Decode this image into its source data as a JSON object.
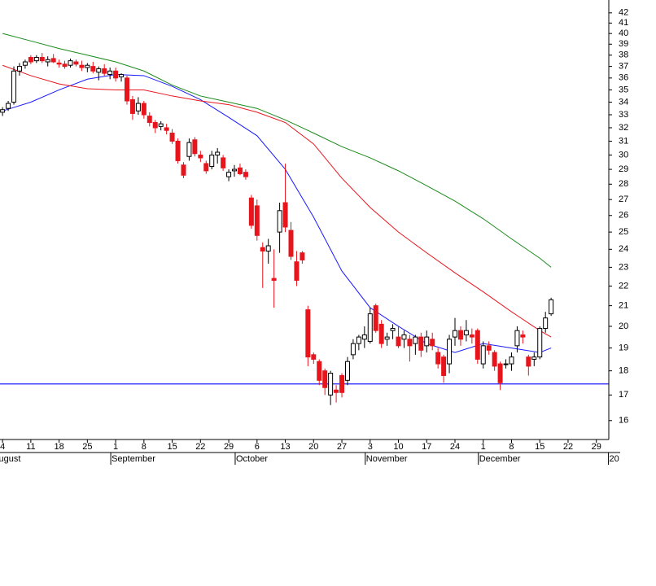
{
  "chart_data": {
    "type": "candlestick",
    "log_scale": true,
    "ylim": [
      15.3,
      43.3
    ],
    "yticks": [
      16,
      17,
      18,
      19,
      20,
      21,
      22,
      23,
      24,
      25,
      26,
      27,
      28,
      29,
      30,
      31,
      32,
      33,
      34,
      35,
      36,
      37,
      38,
      39,
      40,
      41,
      42
    ],
    "xlim": [
      -0.45,
      107.2
    ],
    "xticks": [
      {
        "value": 0,
        "label": "4"
      },
      {
        "value": 5,
        "label": "11"
      },
      {
        "value": 10,
        "label": "18"
      },
      {
        "value": 15,
        "label": "25"
      },
      {
        "value": 20,
        "label": "1"
      },
      {
        "value": 25,
        "label": "8"
      },
      {
        "value": 30,
        "label": "15"
      },
      {
        "value": 35,
        "label": "22"
      },
      {
        "value": 40,
        "label": "29"
      },
      {
        "value": 45,
        "label": "6"
      },
      {
        "value": 50,
        "label": "13"
      },
      {
        "value": 55,
        "label": "20"
      },
      {
        "value": 60,
        "label": "27"
      },
      {
        "value": 65,
        "label": "3"
      },
      {
        "value": 70,
        "label": "10"
      },
      {
        "value": 75,
        "label": "17"
      },
      {
        "value": 80,
        "label": "24"
      },
      {
        "value": 85,
        "label": "1"
      },
      {
        "value": 90,
        "label": "8"
      },
      {
        "value": 95,
        "label": "15"
      },
      {
        "value": 100,
        "label": "22"
      },
      {
        "value": 105,
        "label": "29"
      }
    ],
    "month_labels": [
      {
        "value": -1,
        "label": "August"
      },
      {
        "value": 20,
        "label": "September"
      },
      {
        "value": 42,
        "label": "October"
      },
      {
        "value": 65,
        "label": "November"
      },
      {
        "value": 85,
        "label": "December"
      },
      {
        "value": 108,
        "label": "20"
      }
    ],
    "up_color": "#ffffff",
    "down_color": "#e8141c",
    "ohlc": [
      [
        33.2,
        33.6,
        32.9,
        33.4
      ],
      [
        33.5,
        34.1,
        33.3,
        33.9
      ],
      [
        34.0,
        37.0,
        33.8,
        36.6
      ],
      [
        36.6,
        37.3,
        36.2,
        37.0
      ],
      [
        37.1,
        37.6,
        36.8,
        37.4
      ],
      [
        37.8,
        38.0,
        37.2,
        37.4
      ],
      [
        37.5,
        38.0,
        37.3,
        37.8
      ],
      [
        37.8,
        38.2,
        37.3,
        37.5
      ],
      [
        37.4,
        37.9,
        37.0,
        37.6
      ],
      [
        37.7,
        38.1,
        37.3,
        37.4
      ],
      [
        37.3,
        37.6,
        36.9,
        37.2
      ],
      [
        37.2,
        37.5,
        36.8,
        37.0
      ],
      [
        37.1,
        37.7,
        36.9,
        37.5
      ],
      [
        37.4,
        37.6,
        37.0,
        37.2
      ],
      [
        37.1,
        37.5,
        36.6,
        36.9
      ],
      [
        36.9,
        37.3,
        36.5,
        37.1
      ],
      [
        37.0,
        37.4,
        36.4,
        36.6
      ],
      [
        36.5,
        37.0,
        35.8,
        36.8
      ],
      [
        36.8,
        37.2,
        36.2,
        36.4
      ],
      [
        36.3,
        36.9,
        35.9,
        36.6
      ],
      [
        36.6,
        36.9,
        35.7,
        36.0
      ],
      [
        36.1,
        36.4,
        35.7,
        36.3
      ],
      [
        36.0,
        36.2,
        33.8,
        34.1
      ],
      [
        34.2,
        34.5,
        32.6,
        33.1
      ],
      [
        33.3,
        34.4,
        33.0,
        33.9
      ],
      [
        33.9,
        34.1,
        32.7,
        33.0
      ],
      [
        32.9,
        33.2,
        32.1,
        32.4
      ],
      [
        32.4,
        32.6,
        31.6,
        32.0
      ],
      [
        32.1,
        32.5,
        31.8,
        32.3
      ],
      [
        32.0,
        32.3,
        31.5,
        31.8
      ],
      [
        31.6,
        31.9,
        30.8,
        31.0
      ],
      [
        31.0,
        31.2,
        29.4,
        29.6
      ],
      [
        29.3,
        29.5,
        28.4,
        28.6
      ],
      [
        29.9,
        31.2,
        29.6,
        30.9
      ],
      [
        31.1,
        31.3,
        29.9,
        30.1
      ],
      [
        30.0,
        30.3,
        29.5,
        29.8
      ],
      [
        29.4,
        29.6,
        28.7,
        28.9
      ],
      [
        29.2,
        30.3,
        29.0,
        30.0
      ],
      [
        30.0,
        30.5,
        29.4,
        30.2
      ],
      [
        29.8,
        30.0,
        28.9,
        29.1
      ],
      [
        28.5,
        29.0,
        28.2,
        28.8
      ],
      [
        28.9,
        29.3,
        28.5,
        29.0
      ],
      [
        29.1,
        29.4,
        28.6,
        28.7
      ],
      [
        28.8,
        29.0,
        28.3,
        28.5
      ],
      [
        27.1,
        27.3,
        25.2,
        25.4
      ],
      [
        26.6,
        27.0,
        24.5,
        24.8
      ],
      [
        24.1,
        24.4,
        21.9,
        23.9
      ],
      [
        23.9,
        24.6,
        23.2,
        24.2
      ],
      [
        22.4,
        24.0,
        20.9,
        22.3
      ],
      [
        25.0,
        26.8,
        23.8,
        26.3
      ],
      [
        26.8,
        29.4,
        25.0,
        25.3
      ],
      [
        25.1,
        25.6,
        23.4,
        23.6
      ],
      [
        23.3,
        23.9,
        22.0,
        22.3
      ],
      [
        23.8,
        23.9,
        23.2,
        23.4
      ],
      [
        20.8,
        21.0,
        18.2,
        18.6
      ],
      [
        18.7,
        18.8,
        18.3,
        18.5
      ],
      [
        18.4,
        18.5,
        17.4,
        17.6
      ],
      [
        18.0,
        18.1,
        17.0,
        17.3
      ],
      [
        17.0,
        18.0,
        16.6,
        17.9
      ],
      [
        17.2,
        17.4,
        16.7,
        17.1
      ],
      [
        17.8,
        17.9,
        16.9,
        17.1
      ],
      [
        17.6,
        18.6,
        17.4,
        18.4
      ],
      [
        18.7,
        19.4,
        18.5,
        19.2
      ],
      [
        19.2,
        19.6,
        18.9,
        19.5
      ],
      [
        19.4,
        20.0,
        19.0,
        19.6
      ],
      [
        19.3,
        20.9,
        19.2,
        20.6
      ],
      [
        21.0,
        21.1,
        19.7,
        19.8
      ],
      [
        20.1,
        20.3,
        19.0,
        19.2
      ],
      [
        19.4,
        19.7,
        19.1,
        19.5
      ],
      [
        19.8,
        20.1,
        19.4,
        19.9
      ],
      [
        19.5,
        20.0,
        19.0,
        19.1
      ],
      [
        19.4,
        19.8,
        19.0,
        19.6
      ],
      [
        19.4,
        19.6,
        18.4,
        19.1
      ],
      [
        19.2,
        19.6,
        18.7,
        19.5
      ],
      [
        19.5,
        19.7,
        18.6,
        18.9
      ],
      [
        19.1,
        19.8,
        18.8,
        19.5
      ],
      [
        19.4,
        19.7,
        18.9,
        19.1
      ],
      [
        18.8,
        19.0,
        18.1,
        18.3
      ],
      [
        18.6,
        18.7,
        17.5,
        17.8
      ],
      [
        18.3,
        19.6,
        17.9,
        19.4
      ],
      [
        19.5,
        20.4,
        19.1,
        19.8
      ],
      [
        19.8,
        20.0,
        19.1,
        19.4
      ],
      [
        19.6,
        20.3,
        19.3,
        19.8
      ],
      [
        19.6,
        19.9,
        19.2,
        19.5
      ],
      [
        19.8,
        19.9,
        18.3,
        18.5
      ],
      [
        18.3,
        19.3,
        18.1,
        19.1
      ],
      [
        19.1,
        19.3,
        18.7,
        18.9
      ],
      [
        18.8,
        18.9,
        18.0,
        18.2
      ],
      [
        18.3,
        18.4,
        17.2,
        17.5
      ],
      [
        18.3,
        18.5,
        18.1,
        18.3
      ],
      [
        18.3,
        18.8,
        18.0,
        18.6
      ],
      [
        19.1,
        20.0,
        18.8,
        19.8
      ],
      [
        19.6,
        19.8,
        19.2,
        19.5
      ],
      [
        18.6,
        18.7,
        17.8,
        18.2
      ],
      [
        18.5,
        18.8,
        18.2,
        18.6
      ],
      [
        18.6,
        20.0,
        18.5,
        19.9
      ],
      [
        19.9,
        20.7,
        19.7,
        20.4
      ],
      [
        20.6,
        21.4,
        20.5,
        21.3
      ]
    ],
    "moving_averages": [
      {
        "color": "#1a1aff",
        "x": [
          0,
          5,
          10,
          15,
          20,
          25,
          30,
          35,
          40,
          45,
          50,
          55,
          60,
          65,
          70,
          75,
          80,
          85,
          90,
          95,
          97
        ],
        "values": [
          33.3,
          34.0,
          35.0,
          35.9,
          36.3,
          36.2,
          35.3,
          34.2,
          32.8,
          31.4,
          29.0,
          25.9,
          22.8,
          20.9,
          20.0,
          19.2,
          18.8,
          19.2,
          19.0,
          18.8,
          19.0
        ]
      },
      {
        "color": "#e8141c",
        "x": [
          0,
          5,
          10,
          15,
          20,
          25,
          30,
          35,
          40,
          45,
          50,
          55,
          60,
          65,
          70,
          75,
          80,
          85,
          90,
          95,
          97
        ],
        "values": [
          37.1,
          36.2,
          35.5,
          35.1,
          35.0,
          35.0,
          34.5,
          34.1,
          33.8,
          33.2,
          32.4,
          30.8,
          28.4,
          26.5,
          25.0,
          23.8,
          22.7,
          21.7,
          20.7,
          19.8,
          19.5
        ]
      },
      {
        "color": "#1a8a1a",
        "x": [
          0,
          5,
          10,
          15,
          20,
          25,
          30,
          35,
          40,
          45,
          50,
          55,
          60,
          65,
          70,
          75,
          80,
          85,
          90,
          95,
          97
        ],
        "values": [
          40.0,
          39.3,
          38.6,
          38.0,
          37.4,
          36.6,
          35.4,
          34.5,
          34.0,
          33.5,
          32.6,
          31.6,
          30.6,
          29.8,
          28.9,
          27.9,
          26.9,
          25.8,
          24.6,
          23.5,
          23.0
        ]
      }
    ],
    "hline": {
      "value": 17.45,
      "color": "#1a1aff"
    }
  }
}
